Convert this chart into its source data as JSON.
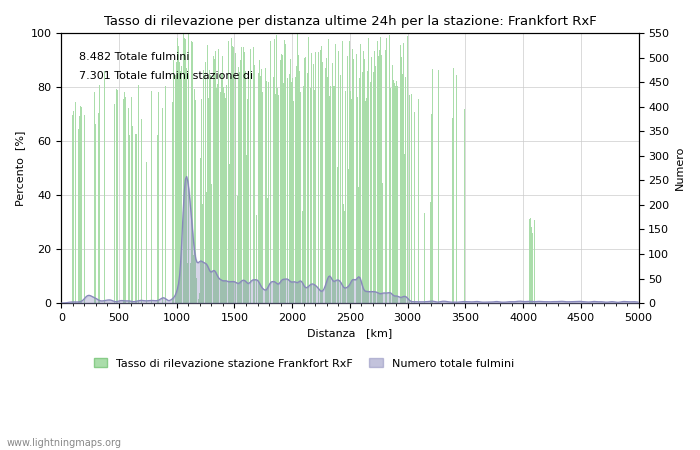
{
  "title": "Tasso di rilevazione per distanza ultime 24h per la stazione: Frankfort RxF",
  "xlabel": "Distanza   [km]",
  "ylabel_left": "Percento  [%]",
  "ylabel_right": "Numero",
  "annotation1": "8.482 Totale fulmini",
  "annotation2": "7.301 Totale fulmini stazione di",
  "legend_green": "Tasso di rilevazione stazione Frankfort RxF",
  "legend_blue": "Numero totale fulmini",
  "watermark": "www.lightningmaps.org",
  "xlim": [
    0,
    5000
  ],
  "ylim_left": [
    0,
    100
  ],
  "ylim_right": [
    0,
    550
  ],
  "bar_color": "#aaddaa",
  "line_color": "#8888bb",
  "background_color": "#ffffff",
  "grid_color": "#cccccc"
}
